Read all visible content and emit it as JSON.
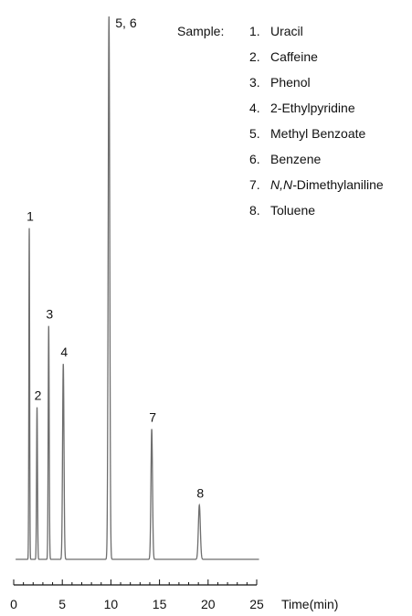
{
  "chart_data": {
    "type": "line",
    "title": "",
    "xlabel": "Time(min)",
    "ylabel": "",
    "xlim": [
      0,
      25
    ],
    "x_ticks": [
      0,
      5,
      10,
      15,
      20,
      25
    ],
    "x_tick_labels": [
      "0",
      "5",
      "10",
      "15",
      "20",
      "25"
    ],
    "grid": false,
    "line_color": "#6e6e6e",
    "baseline": 0,
    "ylim": [
      0,
      100
    ],
    "peaks": [
      {
        "label": "1",
        "time": 1.6,
        "height": 61,
        "width": 0.1
      },
      {
        "label": "2",
        "time": 2.4,
        "height": 28,
        "width": 0.12
      },
      {
        "label": "3",
        "time": 3.6,
        "height": 43,
        "width": 0.13
      },
      {
        "label": "4",
        "time": 5.1,
        "height": 36,
        "width": 0.18
      },
      {
        "label": "5, 6",
        "time": 9.8,
        "height": 100,
        "width": 0.2
      },
      {
        "label": "7",
        "time": 14.2,
        "height": 24,
        "width": 0.2
      },
      {
        "label": "8",
        "time": 19.1,
        "height": 10,
        "width": 0.25
      }
    ],
    "legend": {
      "title": "Sample:",
      "placement": "top-right",
      "items": [
        {
          "num": "1.",
          "name": "Uracil"
        },
        {
          "num": "2.",
          "name": "Caffeine"
        },
        {
          "num": "3.",
          "name": "Phenol"
        },
        {
          "num": "4.",
          "name": "2-Ethylpyridine"
        },
        {
          "num": "5.",
          "name": "Methyl Benzoate"
        },
        {
          "num": "6.",
          "name": "Benzene"
        },
        {
          "num": "7.",
          "name": "N,N-Dimethylaniline",
          "italic_prefix": "N,N-",
          "rest": "Dimethylaniline"
        },
        {
          "num": "8.",
          "name": "Toluene"
        }
      ]
    }
  }
}
